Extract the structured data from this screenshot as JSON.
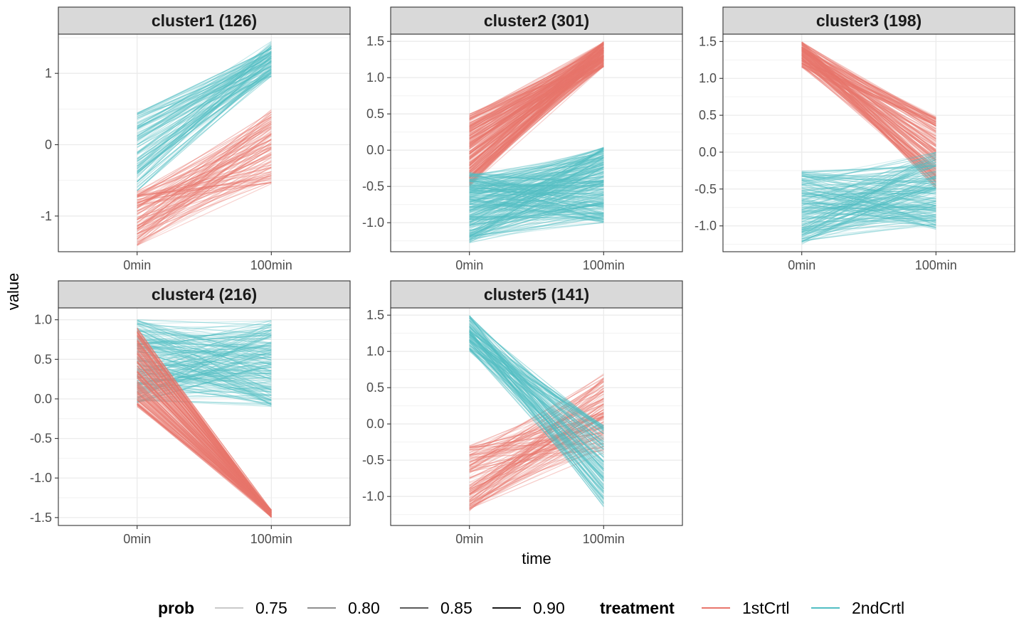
{
  "chart_data": {
    "type": "line",
    "xlabel": "time",
    "ylabel": "value",
    "x_categories": [
      "0min",
      "100min"
    ],
    "grid": true,
    "legend_position": "bottom",
    "colors": {
      "1stCrtl": "#e8766c",
      "2ndCrtl": "#52bec3"
    },
    "panels": [
      {
        "title": "cluster1 (126)",
        "n": 126,
        "ylim": [
          -1.5,
          1.55
        ],
        "yticks": [
          -1,
          0,
          1
        ],
        "yticklabels": [
          "-1",
          "0",
          "1"
        ],
        "series": [
          {
            "name": "2ndCrtl",
            "start": [
              -0.65,
              0.45
            ],
            "end": [
              0.95,
              1.45
            ]
          },
          {
            "name": "1stCrtl",
            "start": [
              -1.42,
              -0.65
            ],
            "end": [
              -0.55,
              0.5
            ]
          }
        ]
      },
      {
        "title": "cluster2 (301)",
        "n": 301,
        "ylim": [
          -1.4,
          1.6
        ],
        "yticks": [
          -1.0,
          -0.5,
          0.0,
          0.5,
          1.0,
          1.5
        ],
        "yticklabels": [
          "-1.0",
          "-0.5",
          "0.0",
          "0.5",
          "1.0",
          "1.5"
        ],
        "series": [
          {
            "name": "1stCrtl",
            "start": [
              -0.5,
              0.5
            ],
            "end": [
              1.15,
              1.5
            ]
          },
          {
            "name": "2ndCrtl",
            "start": [
              -1.28,
              -0.3
            ],
            "end": [
              -1.0,
              0.05
            ]
          }
        ]
      },
      {
        "title": "cluster3 (198)",
        "n": 198,
        "ylim": [
          -1.35,
          1.6
        ],
        "yticks": [
          -1.0,
          -0.5,
          0.0,
          0.5,
          1.0,
          1.5
        ],
        "yticklabels": [
          "-1.0",
          "-0.5",
          "0.0",
          "0.5",
          "1.0",
          "1.5"
        ],
        "series": [
          {
            "name": "1stCrtl",
            "start": [
              1.15,
              1.5
            ],
            "end": [
              -0.5,
              0.5
            ]
          },
          {
            "name": "2ndCrtl",
            "start": [
              -1.25,
              -0.25
            ],
            "end": [
              -1.05,
              0.0
            ]
          }
        ]
      },
      {
        "title": "cluster4 (216)",
        "n": 216,
        "ylim": [
          -1.6,
          1.15
        ],
        "yticks": [
          -1.5,
          -1.0,
          -0.5,
          0.0,
          0.5,
          1.0
        ],
        "yticklabels": [
          "-1.5",
          "-1.0",
          "-0.5",
          "0.0",
          "0.5",
          "1.0"
        ],
        "series": [
          {
            "name": "2ndCrtl",
            "start": [
              -0.05,
              1.0
            ],
            "end": [
              -0.1,
              1.0
            ]
          },
          {
            "name": "1stCrtl",
            "start": [
              -0.1,
              0.9
            ],
            "end": [
              -1.5,
              -1.4
            ]
          }
        ]
      },
      {
        "title": "cluster5 (141)",
        "n": 141,
        "ylim": [
          -1.4,
          1.6
        ],
        "yticks": [
          -1.0,
          -0.5,
          0.0,
          0.5,
          1.0,
          1.5
        ],
        "yticklabels": [
          "-1.0",
          "-0.5",
          "0.0",
          "0.5",
          "1.0",
          "1.5"
        ],
        "series": [
          {
            "name": "1stCrtl",
            "start": [
              -1.2,
              -0.3
            ],
            "end": [
              -0.4,
              0.7
            ]
          },
          {
            "name": "2ndCrtl",
            "start": [
              1.0,
              1.5
            ],
            "end": [
              -1.15,
              0.0
            ]
          }
        ]
      }
    ],
    "legend": {
      "prob": {
        "title": "prob",
        "items": [
          "0.75",
          "0.80",
          "0.85",
          "0.90"
        ],
        "shades": [
          "#c9c9c9",
          "#8f8f8f",
          "#5a5a5a",
          "#1a1a1a"
        ]
      },
      "treatment": {
        "title": "treatment",
        "items": [
          "1stCrtl",
          "2ndCrtl"
        ]
      }
    }
  }
}
